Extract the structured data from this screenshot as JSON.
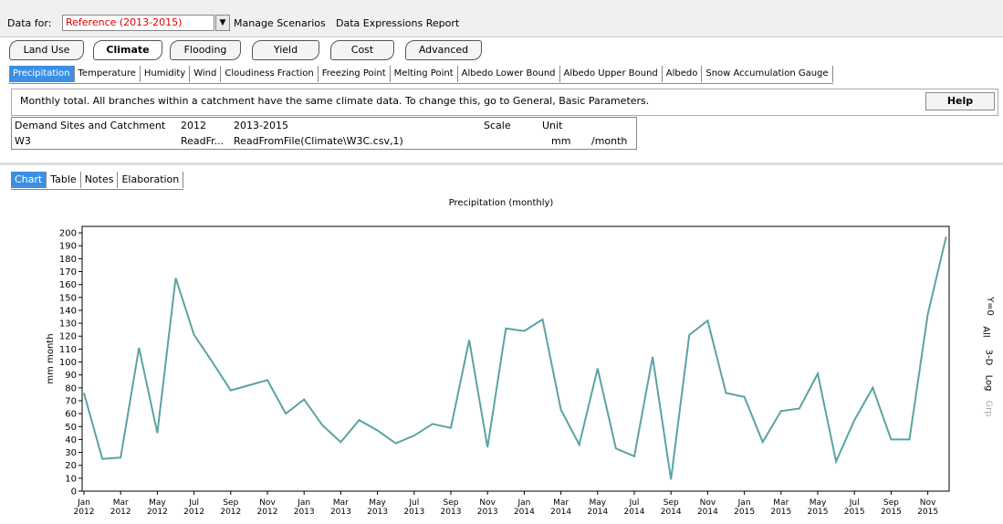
{
  "toolbar": {
    "data_for": "Data for:",
    "scenario": "Reference (2013-2015)",
    "manage": "Manage Scenarios",
    "report": "Data Expressions Report"
  },
  "branch_buttons": [
    "Land Use",
    "Climate",
    "Flooding",
    "Yield",
    "Cost",
    "Advanced"
  ],
  "variable_tabs": [
    "Precipitation",
    "Temperature",
    "Humidity",
    "Wind",
    "Cloudiness Fraction",
    "Freezing Point",
    "Melting Point",
    "Albedo Lower Bound",
    "Albedo Upper Bound",
    "Albedo",
    "Snow Accumulation Gauge"
  ],
  "description": "Monthly total.  All branches within a catchment have the same climate data.  To change this, go to General, Basic Parameters.",
  "help": "Help",
  "table": {
    "headers": [
      "Demand Sites and Catchment",
      "2012",
      "2013-2015",
      "Scale",
      "Unit"
    ],
    "row": {
      "name": "W3",
      "y2012": "ReadFr...",
      "y2013": "ReadFromFile(Climate\\W3C.csv,1)",
      "unit": "mm",
      "per": "/month"
    }
  },
  "view_tabs": [
    "Chart",
    "Table",
    "Notes",
    "Elaboration"
  ],
  "side_tools": [
    "Y=0",
    "All",
    "3-D",
    "Log",
    "Grp"
  ],
  "chart_data": {
    "type": "line",
    "title": "Precipitation (monthly)",
    "y_label": "mm month",
    "categories": [
      "Jan 2012",
      null,
      "Mar 2012",
      null,
      "May 2012",
      null,
      "Jul 2012",
      null,
      "Sep 2012",
      null,
      "Nov 2012",
      null,
      "Jan 2013",
      null,
      "Mar 2013",
      null,
      "May 2013",
      null,
      "Jul 2013",
      null,
      "Sep 2013",
      null,
      "Nov 2013",
      null,
      "Jan 2014",
      null,
      "Mar 2014",
      null,
      "May 2014",
      null,
      "Jul 2014",
      null,
      "Sep 2014",
      null,
      "Nov 2014",
      null,
      "Jan 2015",
      null,
      "Mar 2015",
      null,
      "May 2015",
      null,
      "Jul 2015",
      null,
      "Sep 2015",
      null,
      "Nov 2015",
      null
    ],
    "values": [
      76,
      25,
      26,
      111,
      45,
      165,
      121,
      100,
      78,
      82,
      86,
      60,
      71,
      51,
      38,
      55,
      47,
      37,
      43,
      52,
      49,
      117,
      34,
      126,
      124,
      133,
      63,
      36,
      95,
      33,
      27,
      104,
      9,
      121,
      132,
      76,
      73,
      38,
      62,
      64,
      91,
      23,
      55,
      80,
      40,
      40,
      137,
      197
    ],
    "color": "#5ba3a3",
    "ylim": [
      0,
      205
    ],
    "yticks": [
      0,
      10,
      20,
      30,
      40,
      50,
      60,
      70,
      80,
      90,
      100,
      110,
      120,
      130,
      140,
      150,
      160,
      170,
      180,
      190,
      200
    ]
  }
}
